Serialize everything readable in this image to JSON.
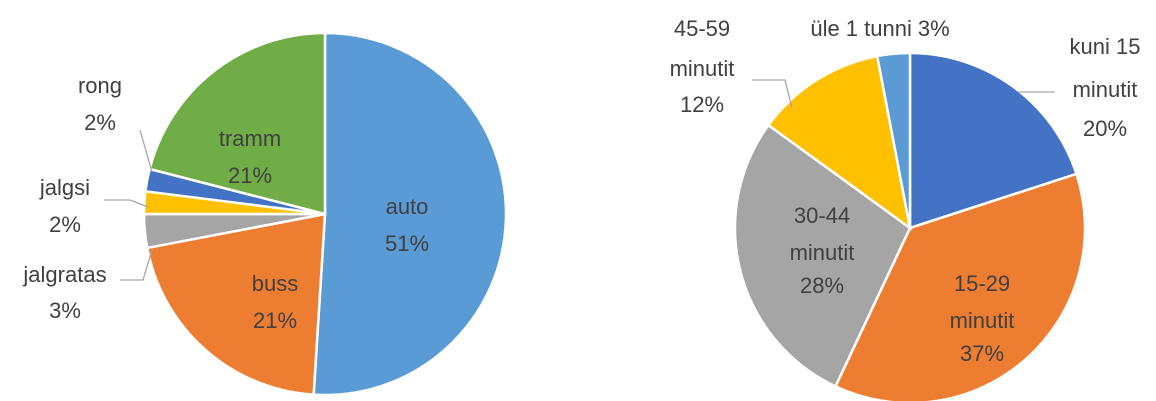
{
  "chart_data": [
    {
      "type": "pie",
      "categories": [
        "auto",
        "buss",
        "jalgratas",
        "jalgsi",
        "rong",
        "tramm"
      ],
      "values": [
        51,
        21,
        3,
        2,
        2,
        21
      ],
      "value_labels": [
        "51%",
        "21%",
        "3%",
        "2%",
        "2%",
        "21%"
      ],
      "colors": [
        "#5b9bd5",
        "#ed7d31",
        "#a5a5a5",
        "#ffc000",
        "#4472c4",
        "#70ad47"
      ]
    },
    {
      "type": "pie",
      "categories": [
        "kuni 15 minutit",
        "15-29 minutit",
        "30-44 minutit",
        "45-59 minutit",
        "üle 1 tunni"
      ],
      "values": [
        20,
        37,
        28,
        12,
        3
      ],
      "value_labels": [
        "20%",
        "37%",
        "28%",
        "12%",
        "3%"
      ],
      "colors": [
        "#4472c4",
        "#ed7d31",
        "#a5a5a5",
        "#ffc000",
        "#5b9bd5"
      ]
    }
  ]
}
